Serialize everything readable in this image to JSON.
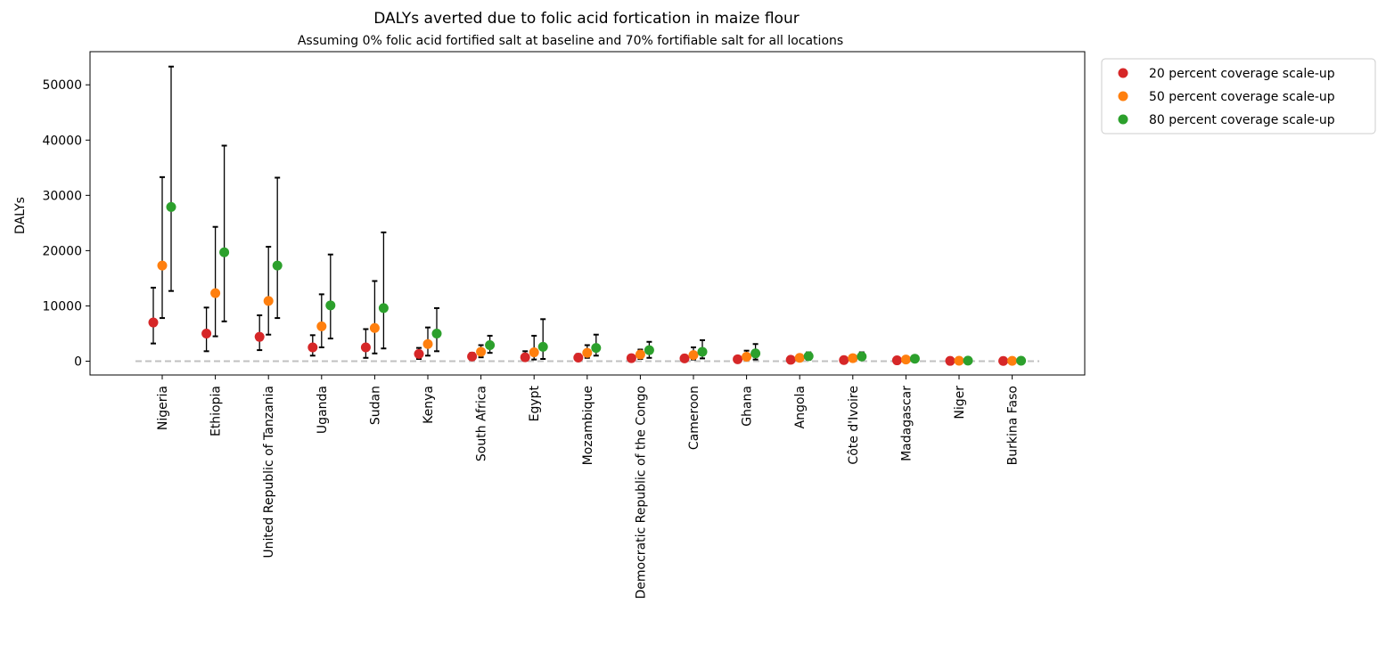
{
  "chart_data": {
    "type": "scatter",
    "title": "DALYs averted due to folic acid fortication in maize flour",
    "subtitle": "Assuming 0% folic acid fortified salt at baseline and 70% fortifiable salt for all locations",
    "xlabel": "",
    "ylabel": "DALYs",
    "ylim": [
      -2500,
      56000
    ],
    "yticks": [
      0,
      10000,
      20000,
      30000,
      40000,
      50000
    ],
    "grid": false,
    "legend_position": "outside-top-right",
    "reference_line": {
      "y": 0,
      "style": "dashed"
    },
    "categories": [
      "Nigeria",
      "Ethiopia",
      "United Republic of Tanzania",
      "Uganda",
      "Sudan",
      "Kenya",
      "South Africa",
      "Egypt",
      "Mozambique",
      "Democratic Republic of the Congo",
      "Cameroon",
      "Ghana",
      "Angola",
      "Côte d'Ivoire",
      "Madagascar",
      "Niger",
      "Burkina Faso"
    ],
    "series": [
      {
        "name": "20 percent coverage scale-up",
        "color": "#d62728",
        "values": [
          7000,
          5000,
          4400,
          2500,
          2500,
          1300,
          850,
          700,
          650,
          550,
          500,
          350,
          250,
          200,
          150,
          50,
          40
        ],
        "lower": [
          3200,
          1800,
          2000,
          1000,
          600,
          400,
          350,
          150,
          250,
          150,
          150,
          80,
          60,
          50,
          40,
          10,
          10
        ],
        "upper": [
          13300,
          9700,
          8300,
          4700,
          5800,
          2400,
          1500,
          1800,
          1300,
          1100,
          1100,
          700,
          550,
          450,
          350,
          120,
          100
        ]
      },
      {
        "name": "50 percent coverage scale-up",
        "color": "#ff7f0e",
        "values": [
          17300,
          12300,
          10900,
          6300,
          6000,
          3100,
          1700,
          1600,
          1500,
          1200,
          1100,
          800,
          600,
          550,
          300,
          80,
          60
        ],
        "lower": [
          7800,
          4500,
          4800,
          2500,
          1400,
          1000,
          700,
          300,
          600,
          400,
          300,
          200,
          150,
          150,
          100,
          20,
          20
        ],
        "upper": [
          33300,
          24300,
          20700,
          12100,
          14500,
          6100,
          2900,
          4600,
          2900,
          2100,
          2500,
          1900,
          1100,
          1100,
          800,
          200,
          150
        ]
      },
      {
        "name": "80 percent coverage scale-up",
        "color": "#2ca02c",
        "values": [
          27900,
          19700,
          17300,
          10100,
          9600,
          5000,
          2900,
          2600,
          2400,
          2000,
          1700,
          1400,
          900,
          850,
          450,
          100,
          80
        ],
        "lower": [
          12700,
          7200,
          7800,
          4100,
          2300,
          1800,
          1500,
          400,
          1000,
          600,
          500,
          300,
          250,
          250,
          150,
          30,
          30
        ],
        "upper": [
          53300,
          39000,
          33200,
          19300,
          23300,
          9600,
          4600,
          7600,
          4800,
          3500,
          3800,
          3100,
          1600,
          1600,
          800,
          300,
          200
        ]
      }
    ]
  }
}
